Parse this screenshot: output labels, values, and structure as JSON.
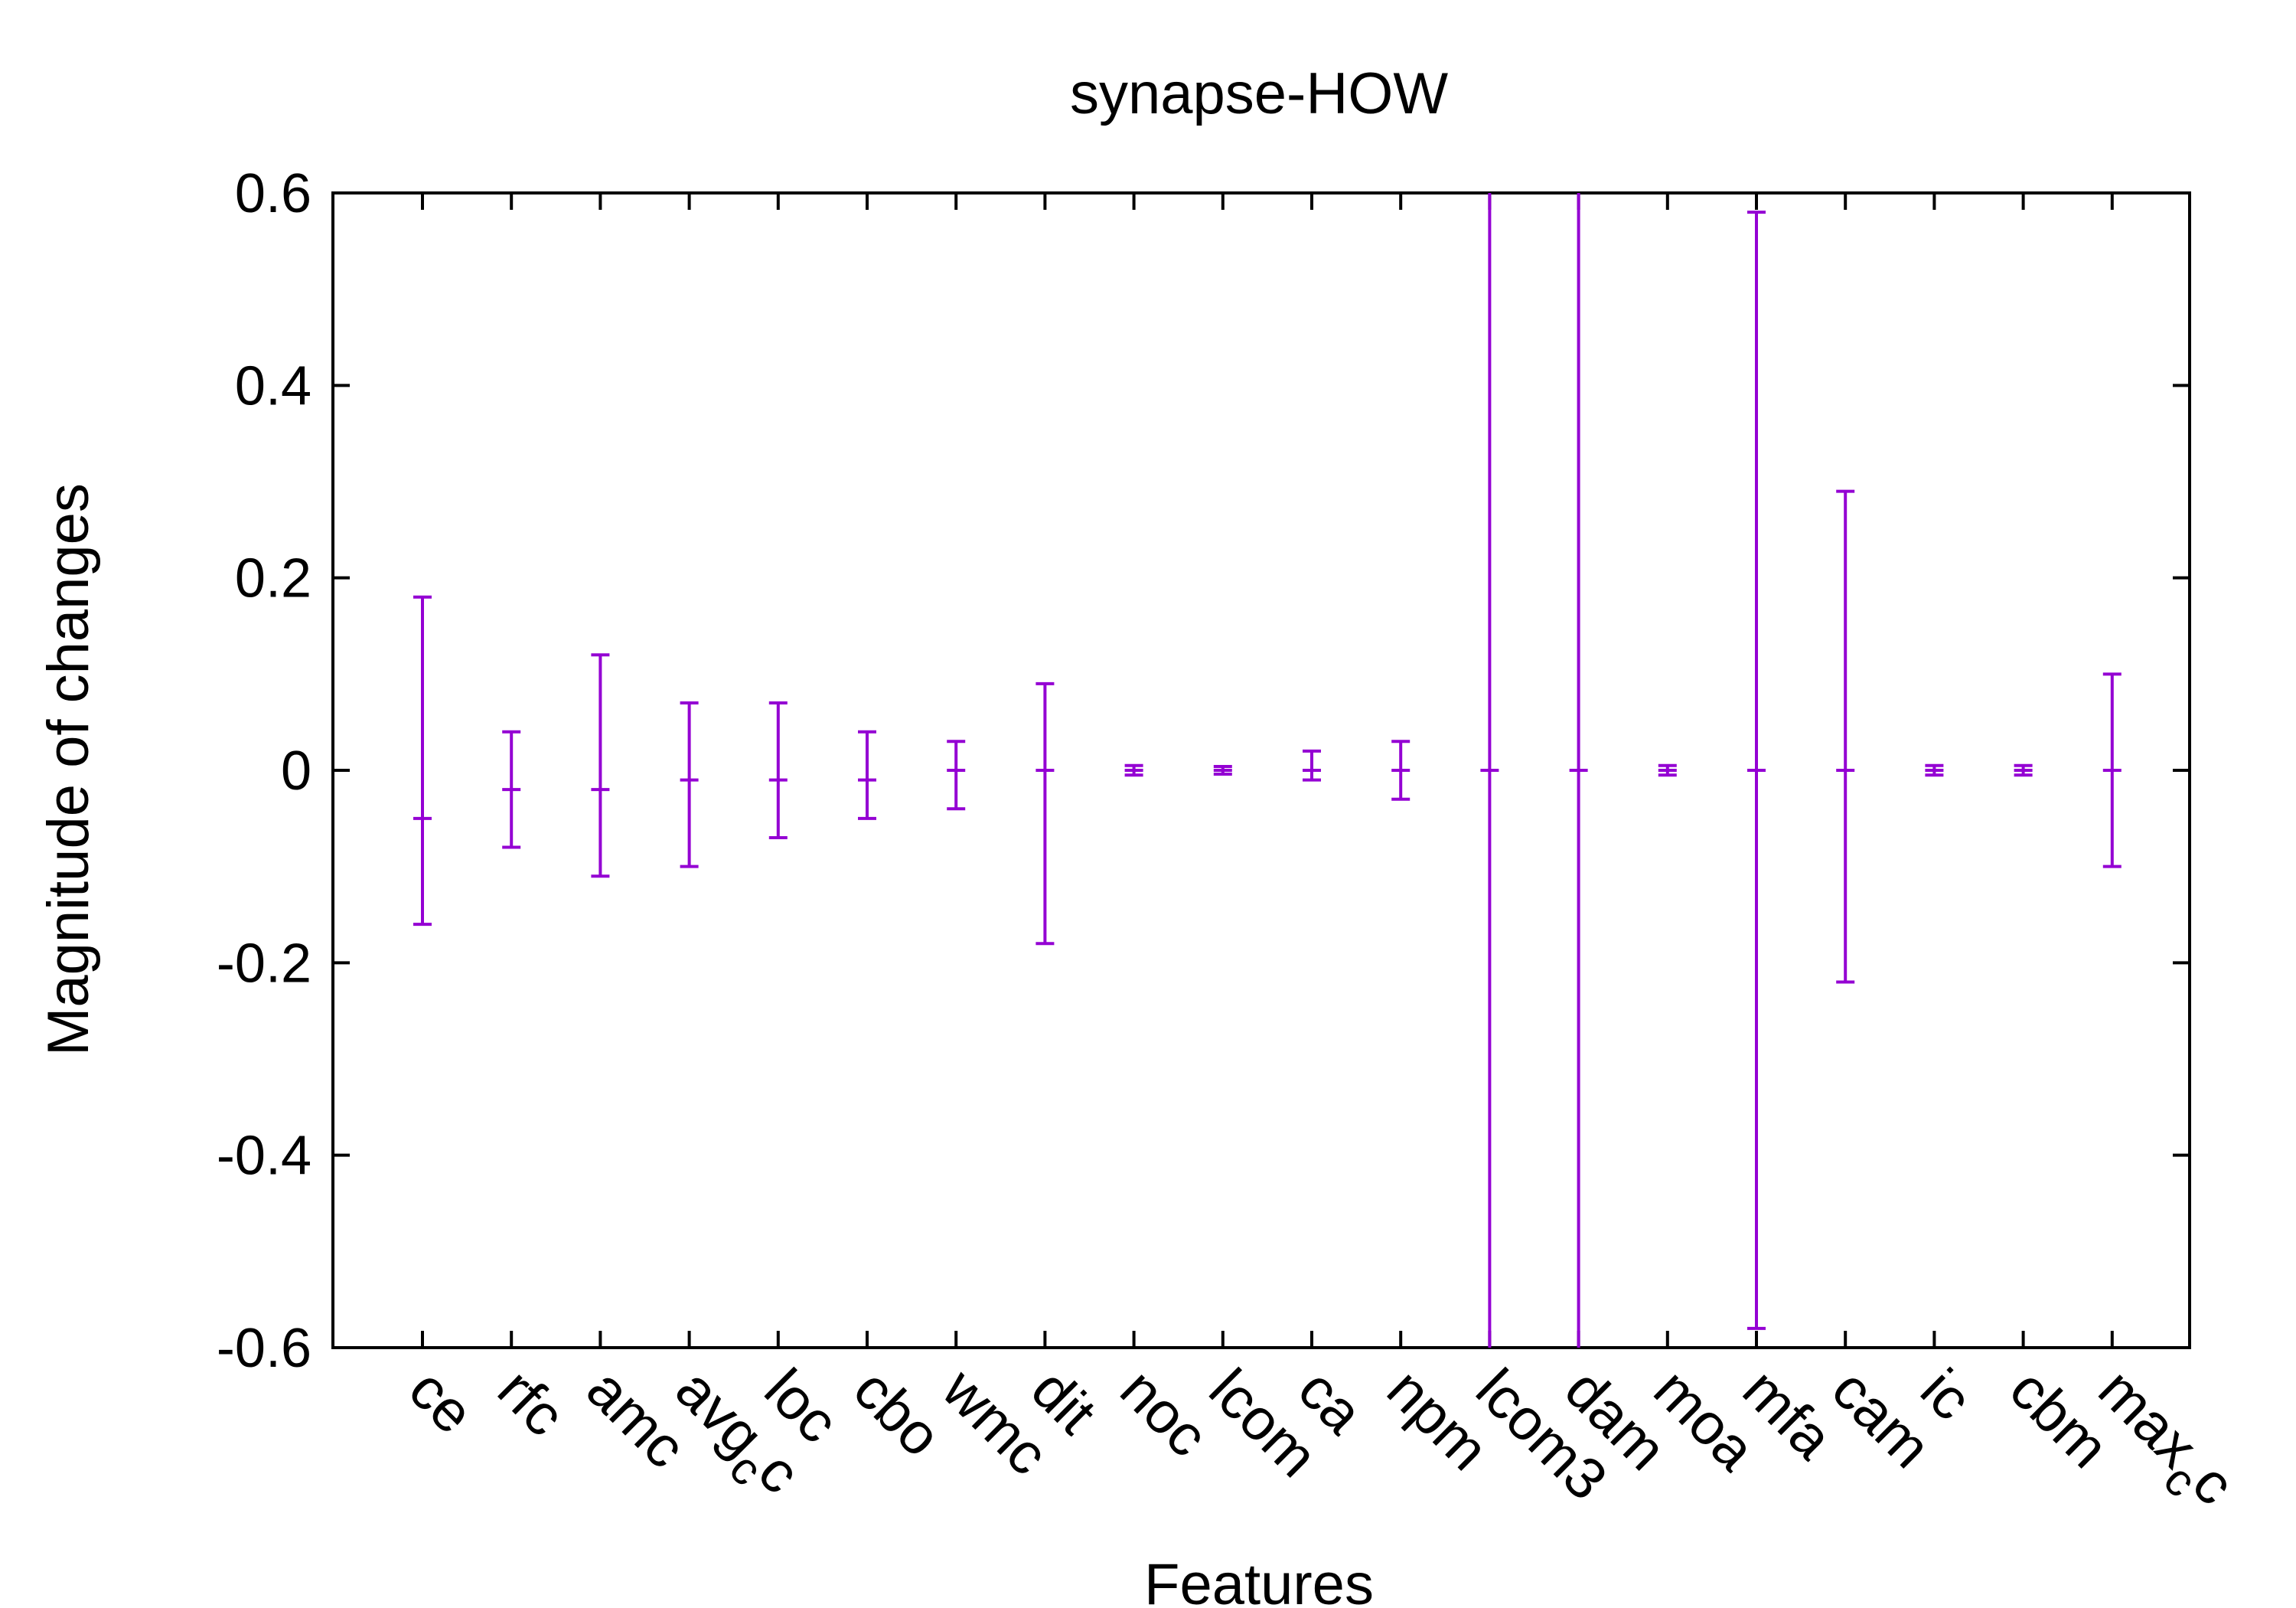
{
  "chart_data": {
    "type": "errorbar",
    "title": "synapse-HOW",
    "xlabel": "Features",
    "ylabel": "Magnitude of changes",
    "ylim": [
      -0.6,
      0.6
    ],
    "yticks": [
      "0.6",
      "0.4",
      "0.2",
      "0",
      "-0.2",
      "-0.4",
      "-0.6"
    ],
    "ytick_values": [
      0.6,
      0.4,
      0.2,
      0,
      -0.2,
      -0.4,
      -0.6
    ],
    "color": "#9400d3",
    "grid": false,
    "legend": "none",
    "categories": [
      {
        "label": "ce",
        "sub": "",
        "center": -0.05,
        "low": -0.16,
        "high": 0.18
      },
      {
        "label": "rfc",
        "sub": "",
        "center": -0.02,
        "low": -0.08,
        "high": 0.04
      },
      {
        "label": "amc",
        "sub": "",
        "center": -0.02,
        "low": -0.11,
        "high": 0.12
      },
      {
        "label": "avg",
        "sub": "c",
        "suffix": "c",
        "center": -0.01,
        "low": -0.1,
        "high": 0.07
      },
      {
        "label": "loc",
        "sub": "",
        "center": -0.01,
        "low": -0.07,
        "high": 0.07
      },
      {
        "label": "cbo",
        "sub": "",
        "center": -0.01,
        "low": -0.05,
        "high": 0.04
      },
      {
        "label": "wmc",
        "sub": "",
        "center": 0.0,
        "low": -0.04,
        "high": 0.03
      },
      {
        "label": "dit",
        "sub": "",
        "center": 0.0,
        "low": -0.18,
        "high": 0.09
      },
      {
        "label": "noc",
        "sub": "",
        "center": 0.0,
        "low": -0.005,
        "high": 0.005
      },
      {
        "label": "lcom",
        "sub": "",
        "center": 0.0,
        "low": -0.004,
        "high": 0.004
      },
      {
        "label": "ca",
        "sub": "",
        "center": 0.0,
        "low": -0.01,
        "high": 0.02
      },
      {
        "label": "npm",
        "sub": "",
        "center": 0.0,
        "low": -0.03,
        "high": 0.03
      },
      {
        "label": "lcom3",
        "sub": "",
        "center": 0.0,
        "low": -0.6,
        "high": 0.6,
        "clipped": true
      },
      {
        "label": "dam",
        "sub": "",
        "center": 0.0,
        "low": -0.6,
        "high": 0.6,
        "clipped": true
      },
      {
        "label": "moa",
        "sub": "",
        "center": 0.0,
        "low": -0.005,
        "high": 0.005
      },
      {
        "label": "mfa",
        "sub": "",
        "center": 0.0,
        "low": -0.58,
        "high": 0.58
      },
      {
        "label": "cam",
        "sub": "",
        "center": 0.0,
        "low": -0.22,
        "high": 0.29
      },
      {
        "label": "ic",
        "sub": "",
        "center": 0.0,
        "low": -0.005,
        "high": 0.005
      },
      {
        "label": "cbm",
        "sub": "",
        "center": 0.0,
        "low": -0.005,
        "high": 0.005
      },
      {
        "label": "max",
        "sub": "c",
        "suffix": "c",
        "center": 0.0,
        "low": -0.1,
        "high": 0.1
      }
    ]
  }
}
